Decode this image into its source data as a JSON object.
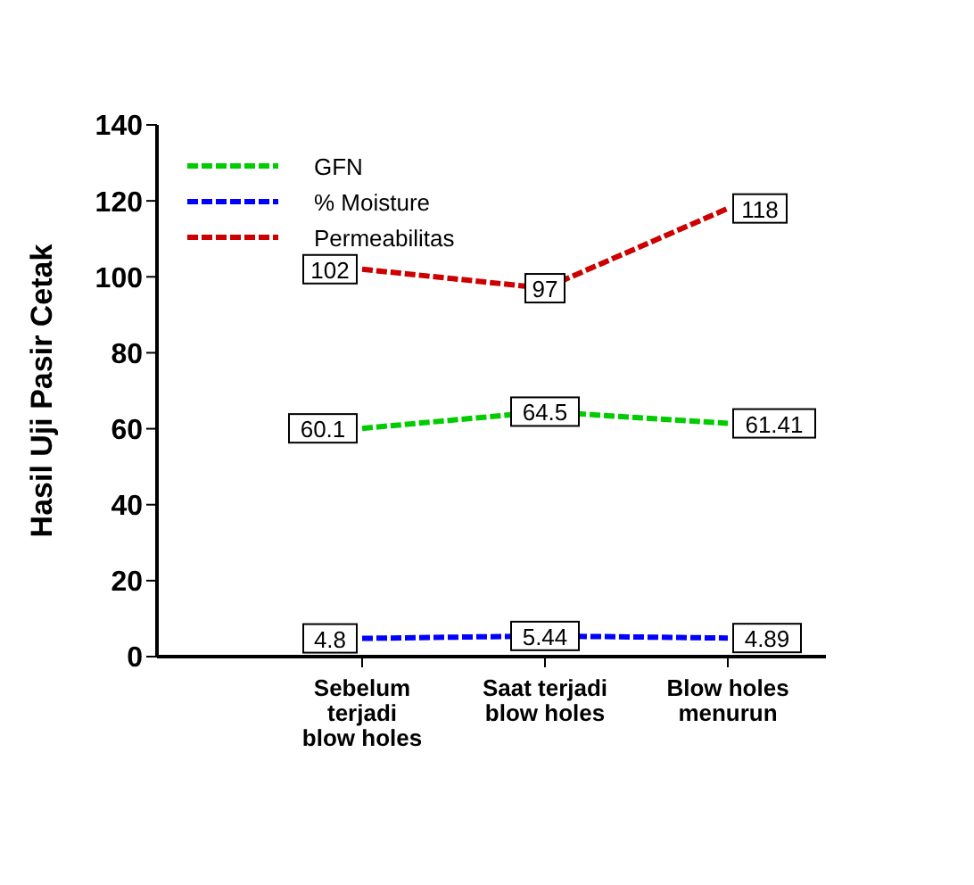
{
  "chart_data": {
    "type": "line",
    "ylabel": "Hasil Uji Pasir Cetak",
    "categories": [
      "Sebelum\nterjadi\nblow holes",
      "Saat terjadi\nblow holes",
      "Blow holes\nmenurun"
    ],
    "series": [
      {
        "name": "GFN",
        "color": "#00cc00",
        "line_style": "dashed",
        "values": [
          60.1,
          64.5,
          61.41
        ]
      },
      {
        "name": "% Moisture",
        "color": "#0000ff",
        "line_style": "dashed",
        "values": [
          4.8,
          5.44,
          4.89
        ]
      },
      {
        "name": "Permeabilitas",
        "color": "#cc0000",
        "line_style": "dashed",
        "values": [
          102,
          97,
          118
        ]
      }
    ],
    "ylim": [
      0,
      140
    ],
    "yticks": [
      0,
      20,
      40,
      60,
      80,
      100,
      120,
      140
    ],
    "grid": false,
    "legend": "top left",
    "data_labels": true
  }
}
